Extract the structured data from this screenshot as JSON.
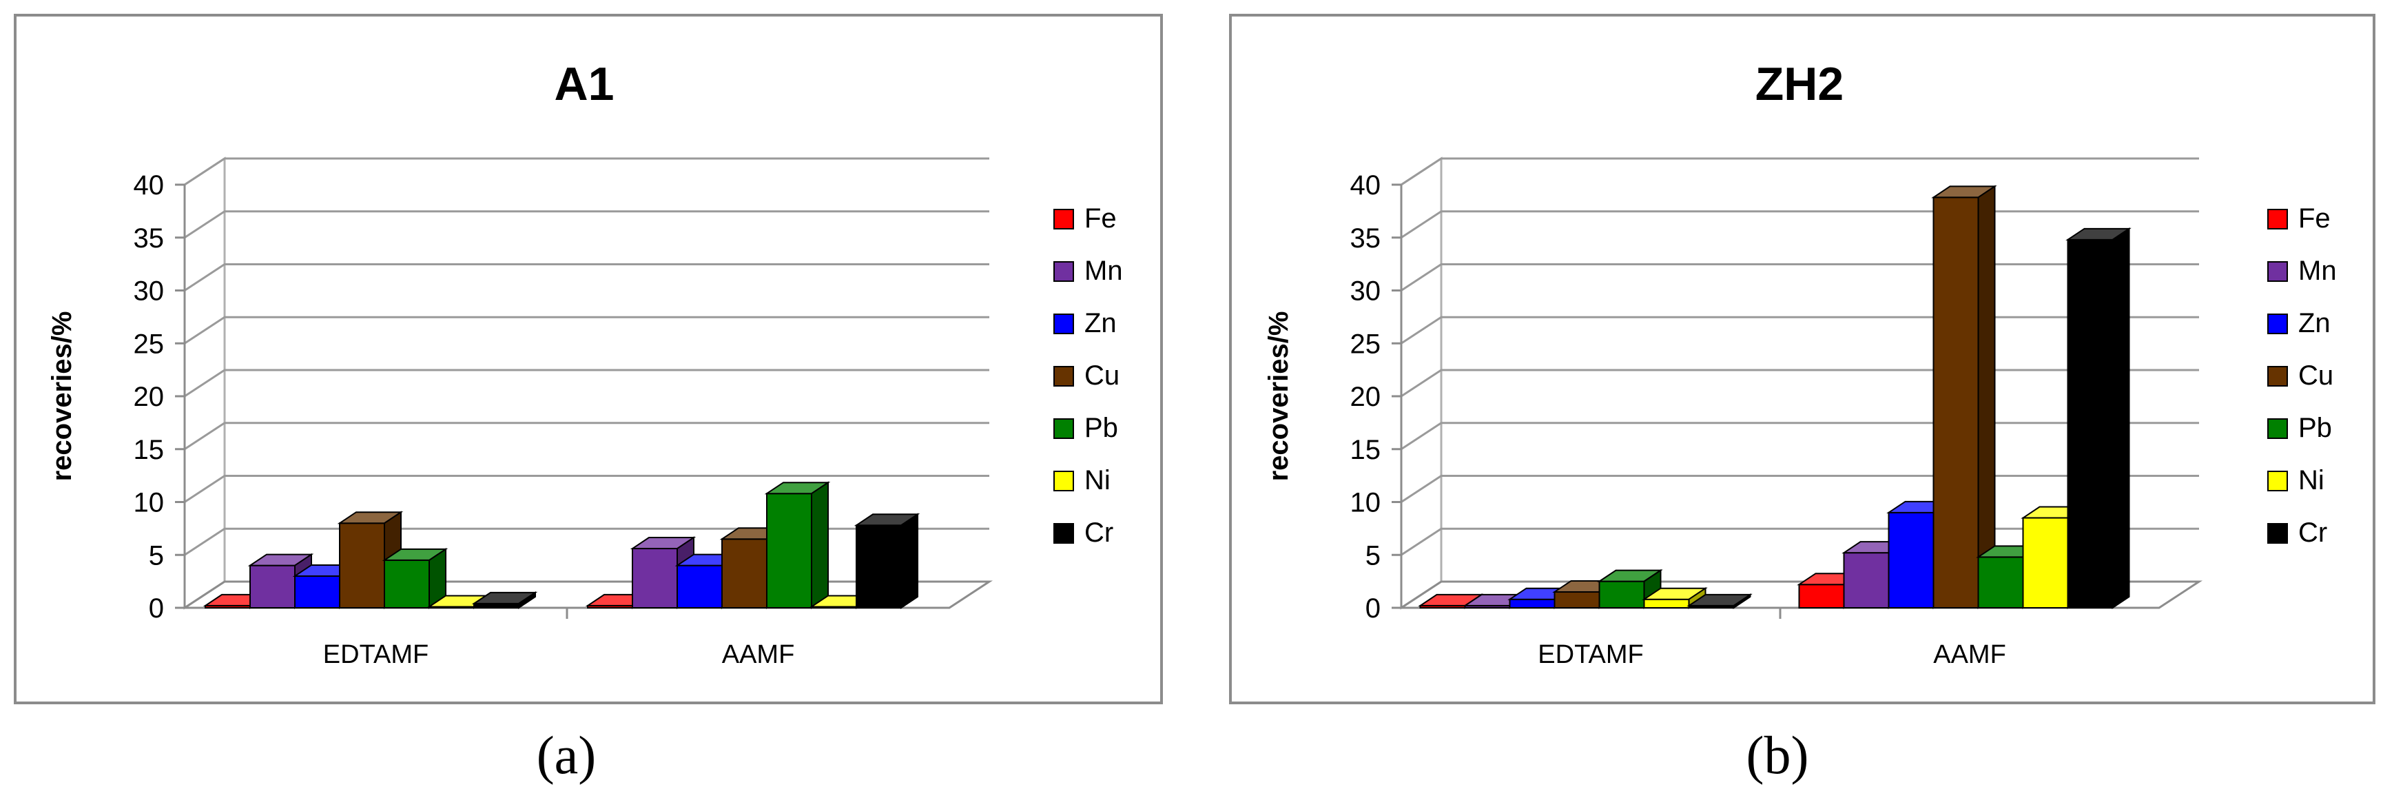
{
  "charts": [
    {
      "panel_label": "(a)",
      "chart_data": {
        "type": "bar",
        "title": "A1",
        "ylabel": "recoveries/%",
        "xlabel": "",
        "ylim": [
          0,
          40
        ],
        "yticks": [
          0,
          5,
          10,
          15,
          20,
          25,
          30,
          35,
          40
        ],
        "grid": true,
        "legend": "right",
        "categories": [
          "EDTAMF",
          "AAMF"
        ],
        "series": [
          {
            "name": "Fe",
            "color": "#ff0000",
            "values": [
              0.2,
              0.2
            ]
          },
          {
            "name": "Mn",
            "color": "#7030a0",
            "values": [
              4.0,
              5.6
            ]
          },
          {
            "name": "Zn",
            "color": "#0000ff",
            "values": [
              3.0,
              4.0
            ]
          },
          {
            "name": "Cu",
            "color": "#663300",
            "values": [
              8.0,
              6.5
            ]
          },
          {
            "name": "Pb",
            "color": "#008000",
            "values": [
              4.5,
              10.8
            ]
          },
          {
            "name": "Ni",
            "color": "#ffff00",
            "values": [
              0.1,
              0.1
            ]
          },
          {
            "name": "Cr",
            "color": "#000000",
            "values": [
              0.4,
              7.8
            ]
          }
        ]
      }
    },
    {
      "panel_label": "(b)",
      "chart_data": {
        "type": "bar",
        "title": "ZH2",
        "ylabel": "recoveries/%",
        "xlabel": "",
        "ylim": [
          0,
          40
        ],
        "yticks": [
          0,
          5,
          10,
          15,
          20,
          25,
          30,
          35,
          40
        ],
        "grid": true,
        "legend": "right",
        "categories": [
          "EDTAMF",
          "AAMF"
        ],
        "series": [
          {
            "name": "Fe",
            "color": "#ff0000",
            "values": [
              0.2,
              2.2
            ]
          },
          {
            "name": "Mn",
            "color": "#7030a0",
            "values": [
              0.2,
              5.2
            ]
          },
          {
            "name": "Zn",
            "color": "#0000ff",
            "values": [
              0.8,
              9.0
            ]
          },
          {
            "name": "Cu",
            "color": "#663300",
            "values": [
              1.5,
              38.8
            ]
          },
          {
            "name": "Pb",
            "color": "#008000",
            "values": [
              2.5,
              4.8
            ]
          },
          {
            "name": "Ni",
            "color": "#ffff00",
            "values": [
              0.8,
              8.5
            ]
          },
          {
            "name": "Cr",
            "color": "#000000",
            "values": [
              0.2,
              34.8
            ]
          }
        ]
      }
    }
  ]
}
